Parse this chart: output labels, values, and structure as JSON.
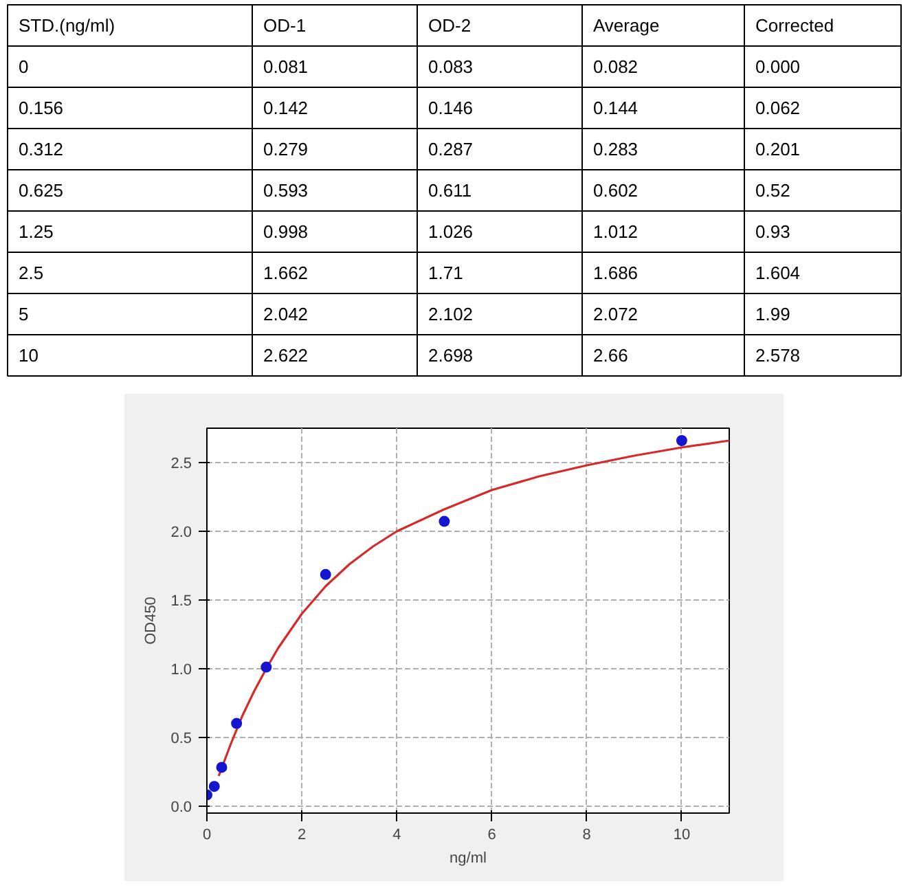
{
  "chart_data": [
    {
      "type": "other",
      "categories": [
        "STD.(ng/ml)",
        "OD-1",
        "OD-2",
        "Average",
        "Corrected"
      ],
      "annotations": [
        "0",
        "0.081",
        "0.083",
        "0.082",
        "0.000",
        "0.156",
        "0.142",
        "0.146",
        "0.144",
        "0.062",
        "0.312",
        "0.279",
        "0.287",
        "0.283",
        "0.201",
        "0.625",
        "0.593",
        "0.611",
        "0.602",
        "0.52",
        "1.25",
        "0.998",
        "1.026",
        "1.012",
        "0.93",
        "2.5",
        "1.662",
        "1.71",
        "1.686",
        "1.604",
        "5",
        "2.042",
        "2.102",
        "2.072",
        "1.99",
        "10",
        "2.622",
        "2.698",
        "2.66",
        "2.578"
      ]
    },
    {
      "type": "scatter",
      "xlabel": "ng/ml",
      "ylabel": "OD450",
      "xlim": [
        0,
        11
      ],
      "xticks": [
        0,
        2,
        4,
        6,
        8,
        10
      ],
      "ylim": [
        -0.05,
        2.75
      ],
      "yticks": [
        {
          "value": 0,
          "label": "0.0"
        },
        0.5,
        {
          "value": 1,
          "label": "1.0"
        },
        1.5,
        {
          "value": 2,
          "label": "2.0"
        },
        2.5
      ],
      "grid": true,
      "series": [
        {
          "type": "line",
          "color": "#d62a2a",
          "x": [
            0.25,
            0.5,
            0.75,
            1,
            1.25,
            1.5,
            2,
            2.5,
            3,
            3.5,
            4,
            5,
            6,
            7,
            8,
            9,
            10,
            11
          ],
          "values": [
            0.22,
            0.45,
            0.66,
            0.84,
            1.0,
            1.15,
            1.4,
            1.6,
            1.76,
            1.89,
            2.0,
            2.16,
            2.3,
            2.4,
            2.48,
            2.55,
            2.61,
            2.66
          ]
        },
        {
          "type": "scatter",
          "marker": "circle",
          "color": "#1515d0",
          "x": [
            0,
            0.156,
            0.312,
            0.625,
            1.25,
            2.5,
            5,
            10
          ],
          "values": [
            0.082,
            0.144,
            0.283,
            0.602,
            1.012,
            1.686,
            2.072,
            2.66
          ]
        }
      ]
    }
  ]
}
